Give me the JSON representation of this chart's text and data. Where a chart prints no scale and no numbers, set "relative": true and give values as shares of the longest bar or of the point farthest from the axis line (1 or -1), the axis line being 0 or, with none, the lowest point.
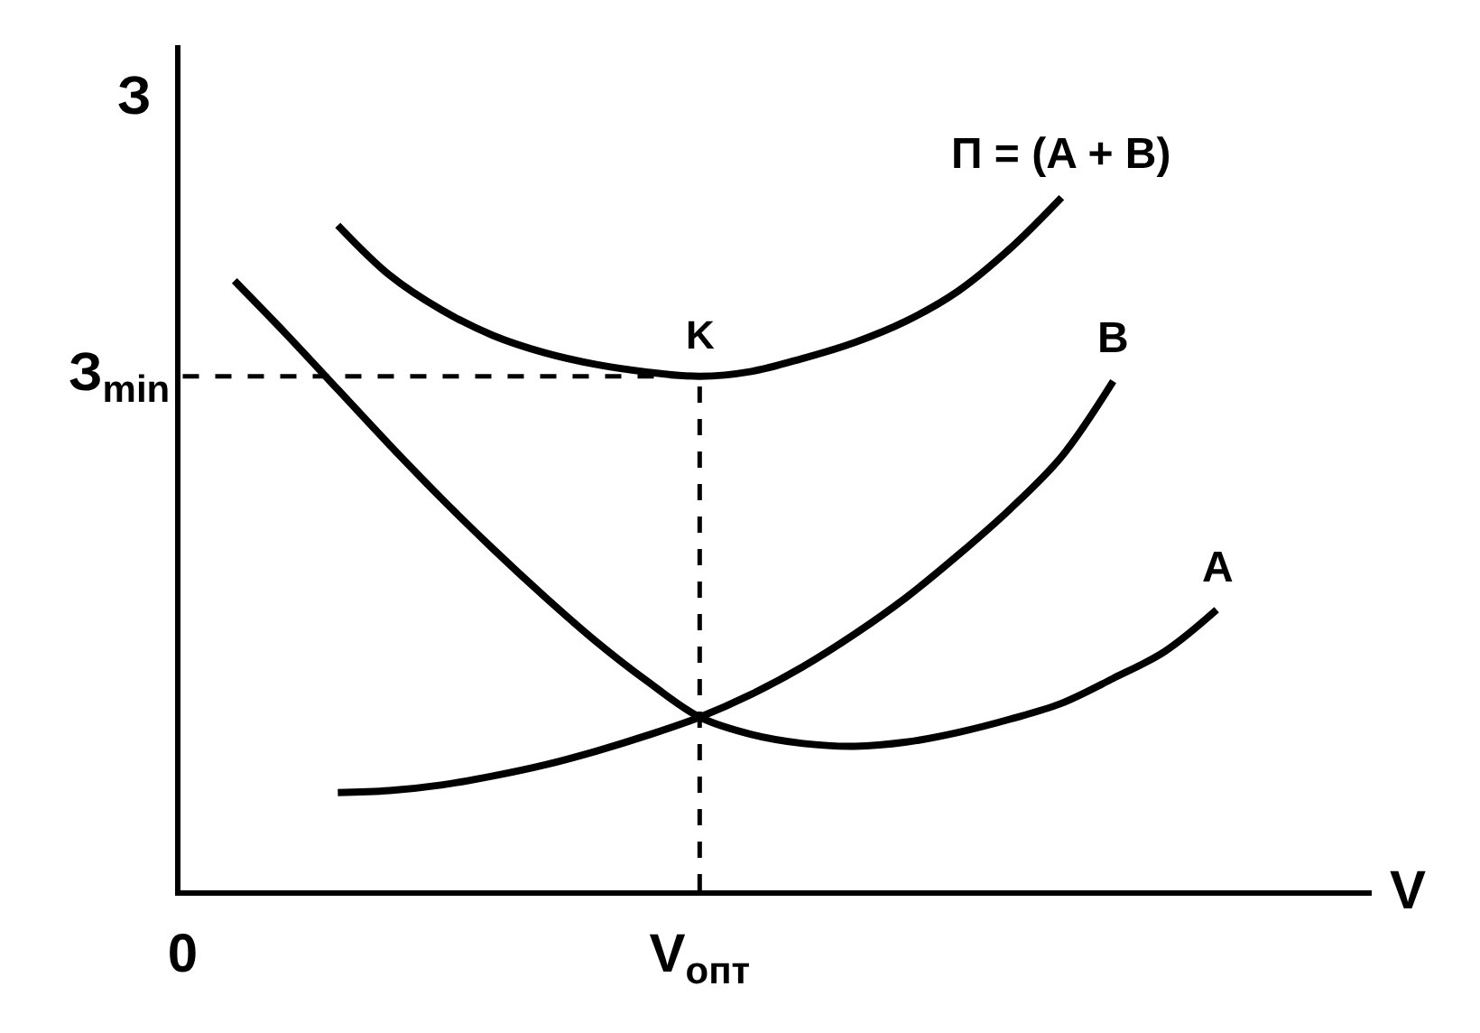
{
  "chart_data": {
    "type": "line",
    "relative": true,
    "xlabel": "V",
    "ylabel": "З",
    "line_style": "solid",
    "categories": [
      "0",
      null,
      null,
      null,
      null,
      null,
      null,
      null,
      null,
      null,
      "V$_{опт}$",
      null,
      null,
      null,
      null,
      null,
      null,
      null,
      null,
      null,
      null,
      null,
      null,
      null
    ],
    "series": [
      {
        "name": "A",
        "color": "#000000",
        "values": [
          null,
          0.88,
          0.803,
          0.723,
          0.643,
          0.566,
          0.493,
          0.424,
          0.359,
          0.301,
          0.25,
          0.225,
          0.212,
          0.208,
          0.214,
          0.228,
          0.247,
          0.27,
          0.306,
          0.345,
          0.405,
          null,
          null,
          null
        ]
      },
      {
        "name": "B",
        "color": "#000000",
        "values": [
          null,
          null,
          null,
          0.141,
          0.144,
          0.152,
          0.165,
          0.181,
          0.201,
          0.224,
          0.25,
          0.283,
          0.323,
          0.37,
          0.423,
          0.484,
          0.55,
          0.626,
          0.735,
          null,
          null,
          null,
          null,
          null
        ]
      },
      {
        "name": "П = (A + B)",
        "color": "#000000",
        "values": [
          null,
          null,
          null,
          0.96,
          0.888,
          0.838,
          0.801,
          0.776,
          0.759,
          0.748,
          0.742,
          0.749,
          0.768,
          0.791,
          0.822,
          0.865,
          0.926,
          1.0,
          null,
          null,
          null,
          null,
          null,
          null
        ]
      }
    ],
    "ref_lines": [
      {
        "axis": "y",
        "value": 0.742,
        "label": "З$_{min}$",
        "line_style": "dashed",
        "color": "#000000"
      },
      {
        "axis": "x",
        "value": "V$_{опт}$",
        "line_style": "dashed",
        "color": "#000000"
      }
    ],
    "annotations": [
      {
        "text": "K",
        "x": "V$_{опт}$",
        "y": 0.742
      }
    ]
  }
}
